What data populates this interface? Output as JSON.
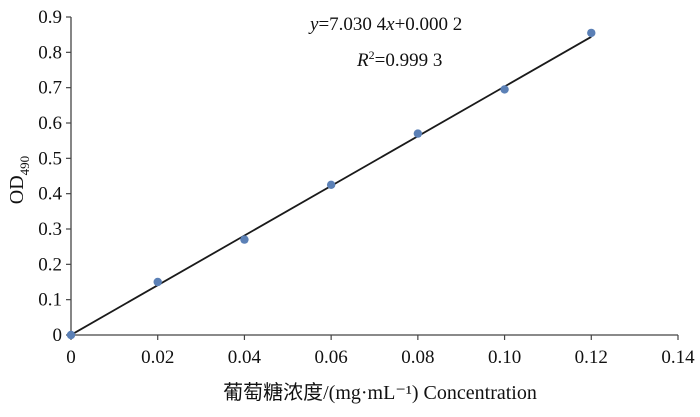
{
  "chart_data": {
    "type": "scatter",
    "xlabel": "葡萄糖浓度/(mg·mL⁻¹)  Concentration",
    "ylabel": {
      "base": "OD",
      "sub": "490"
    },
    "xlim": [
      0,
      0.14
    ],
    "ylim": [
      0,
      0.9
    ],
    "x_ticks": [
      0,
      0.02,
      0.04,
      0.06,
      0.08,
      0.1,
      0.12,
      0.14
    ],
    "x_tick_labels": [
      "0",
      "0.02",
      "0.04",
      "0.06",
      "0.08",
      "0.10",
      "0.12",
      "0.14"
    ],
    "y_ticks": [
      0,
      0.1,
      0.2,
      0.3,
      0.4,
      0.5,
      0.6,
      0.7,
      0.8,
      0.9
    ],
    "y_tick_labels": [
      "0",
      "0.1",
      "0.2",
      "0.3",
      "0.4",
      "0.5",
      "0.6",
      "0.7",
      "0.8",
      "0.9"
    ],
    "grid": false,
    "series": [
      {
        "x": [
          0,
          0.02,
          0.04,
          0.06,
          0.08,
          0.1,
          0.12
        ],
        "y": [
          0,
          0.15,
          0.27,
          0.425,
          0.57,
          0.695,
          0.855
        ]
      }
    ],
    "fit": {
      "slope": 7.0304,
      "intercept": 0.0002,
      "x_range": [
        0,
        0.12
      ]
    },
    "annotations": {
      "equation": {
        "var_y": "y",
        "rest1": "=7.030 4",
        "var_x": "x",
        "rest2": "+0.000 2"
      },
      "r2": {
        "var": "R",
        "sup": "2",
        "rest": "=0.999 3"
      }
    },
    "colors": {
      "point": "#5b80b6",
      "line": "#1a1a1a",
      "axis": "#444444"
    }
  }
}
